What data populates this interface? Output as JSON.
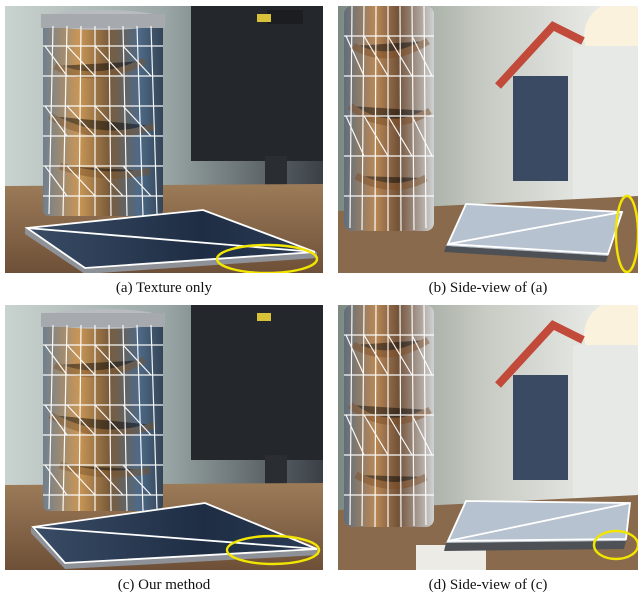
{
  "figure": {
    "panels": [
      {
        "id": "a",
        "caption": "(a) Texture only"
      },
      {
        "id": "b",
        "caption": "(b) Side-view of (a)"
      },
      {
        "id": "c",
        "caption": "(c) Our method"
      },
      {
        "id": "d",
        "caption": "(d) Side-view of (c)"
      }
    ],
    "colors": {
      "mesh_overlay": "#ffffff",
      "highlight_ellipse": "#f2e600",
      "wood_table": "#8a6a4c",
      "window_light": "#eef0ee"
    }
  }
}
